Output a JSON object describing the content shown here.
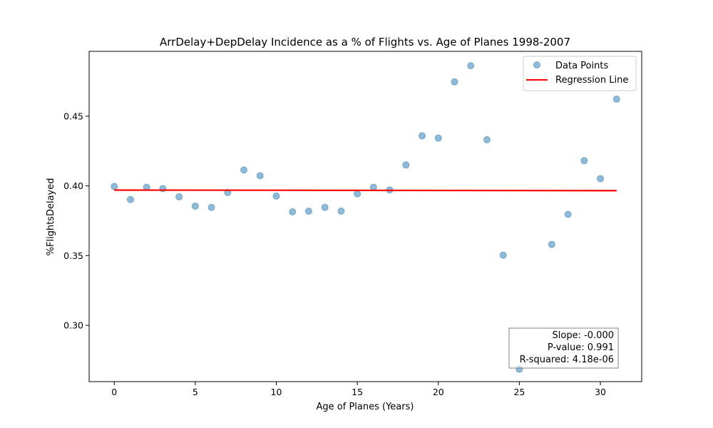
{
  "chart_data": {
    "type": "scatter",
    "title": "ArrDelay+DepDelay Incidence as a % of Flights vs. Age of Planes 1998-2007",
    "xlabel": "Age of Planes (Years)",
    "ylabel": "%FlightsDelayed",
    "xlim": [
      -1.55,
      32.55
    ],
    "ylim": [
      0.2596,
      0.4965
    ],
    "xticks": [
      0,
      5,
      10,
      15,
      20,
      25,
      30
    ],
    "xtick_labels": [
      "0",
      "5",
      "10",
      "15",
      "20",
      "25",
      "30"
    ],
    "yticks": [
      0.3,
      0.35,
      0.4,
      0.45
    ],
    "ytick_labels": [
      "0.30",
      "0.35",
      "0.40",
      "0.45"
    ],
    "grid": false,
    "series": [
      {
        "name": "Data Points",
        "kind": "scatter",
        "color": "#1f77b4",
        "x": [
          0,
          1,
          2,
          3,
          4,
          5,
          6,
          7,
          8,
          9,
          10,
          11,
          12,
          13,
          14,
          15,
          16,
          17,
          18,
          19,
          20,
          21,
          22,
          23,
          24,
          25,
          27,
          28,
          29,
          30,
          31
        ],
        "y": [
          0.3996,
          0.3902,
          0.399,
          0.3981,
          0.3922,
          0.3855,
          0.3846,
          0.3953,
          0.4114,
          0.4073,
          0.3927,
          0.3814,
          0.3819,
          0.3846,
          0.3819,
          0.3943,
          0.399,
          0.3971,
          0.415,
          0.4359,
          0.4343,
          0.4746,
          0.4862,
          0.4331,
          0.3503,
          0.2685,
          0.358,
          0.3796,
          0.4181,
          0.4052,
          0.4622
        ]
      },
      {
        "name": "Regression Line",
        "kind": "line",
        "color": "#ff0000",
        "x": [
          0,
          31
        ],
        "y": [
          0.397,
          0.3966
        ]
      }
    ],
    "legend": {
      "position": "upper right",
      "entries": [
        "Data Points",
        "Regression Line"
      ]
    },
    "annotation": {
      "position": "lower right",
      "lines": [
        "Slope: -0.000",
        "P-value: 0.991",
        "R-squared: 4.18e-06"
      ]
    }
  }
}
